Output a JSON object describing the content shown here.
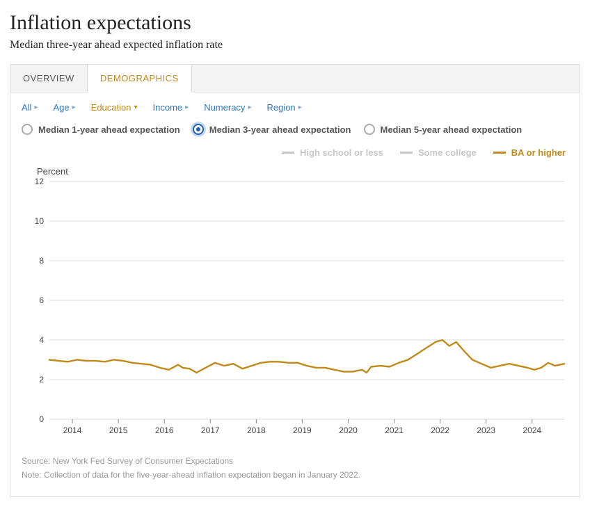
{
  "title": "Inflation expectations",
  "subtitle": "Median three-year ahead expected inflation rate",
  "tabs": [
    {
      "label": "OVERVIEW",
      "active": false
    },
    {
      "label": "DEMOGRAPHICS",
      "active": true
    }
  ],
  "filters": [
    {
      "label": "All",
      "active": false
    },
    {
      "label": "Age",
      "active": false
    },
    {
      "label": "Education",
      "active": true,
      "caret": "down"
    },
    {
      "label": "Income",
      "active": false
    },
    {
      "label": "Numeracy",
      "active": false
    },
    {
      "label": "Region",
      "active": false
    }
  ],
  "radios": [
    {
      "label": "Median 1-year ahead expectation",
      "selected": false
    },
    {
      "label": "Median 3-year ahead expectation",
      "selected": true
    },
    {
      "label": "Median 5-year ahead expectation",
      "selected": false
    }
  ],
  "legend": [
    {
      "label": "High school or less",
      "color": "#c7c7c7",
      "muted": true
    },
    {
      "label": "Some college",
      "color": "#c7c7c7",
      "muted": true
    },
    {
      "label": "BA or higher",
      "color": "#c08a1a",
      "muted": false
    }
  ],
  "chart": {
    "type": "line",
    "y_axis_label": "Percent",
    "ylim": [
      0,
      12
    ],
    "ytick_step": 2,
    "yticks": [
      0,
      2,
      4,
      6,
      8,
      10,
      12
    ],
    "x_labels": [
      "2014",
      "2015",
      "2016",
      "2017",
      "2018",
      "2019",
      "2020",
      "2021",
      "2022",
      "2023",
      "2024"
    ],
    "x_range": [
      2013.5,
      2024.7
    ],
    "background_color": "#ffffff",
    "grid_color": "#d9d9d9",
    "axis_text_color": "#444444",
    "axis_fontsize": 12,
    "line_width": 2.4,
    "series": [
      {
        "name": "BA or higher",
        "color": "#c08a1a",
        "points": [
          [
            2013.5,
            3.0
          ],
          [
            2013.7,
            2.95
          ],
          [
            2013.9,
            2.9
          ],
          [
            2014.1,
            3.0
          ],
          [
            2014.3,
            2.95
          ],
          [
            2014.5,
            2.95
          ],
          [
            2014.7,
            2.9
          ],
          [
            2014.9,
            3.0
          ],
          [
            2015.1,
            2.95
          ],
          [
            2015.3,
            2.85
          ],
          [
            2015.5,
            2.8
          ],
          [
            2015.7,
            2.75
          ],
          [
            2015.9,
            2.6
          ],
          [
            2016.1,
            2.5
          ],
          [
            2016.3,
            2.75
          ],
          [
            2016.4,
            2.6
          ],
          [
            2016.55,
            2.55
          ],
          [
            2016.7,
            2.35
          ],
          [
            2016.9,
            2.6
          ],
          [
            2017.1,
            2.85
          ],
          [
            2017.3,
            2.7
          ],
          [
            2017.5,
            2.8
          ],
          [
            2017.7,
            2.55
          ],
          [
            2017.9,
            2.7
          ],
          [
            2018.1,
            2.85
          ],
          [
            2018.3,
            2.9
          ],
          [
            2018.5,
            2.9
          ],
          [
            2018.7,
            2.85
          ],
          [
            2018.9,
            2.85
          ],
          [
            2019.1,
            2.7
          ],
          [
            2019.3,
            2.6
          ],
          [
            2019.5,
            2.6
          ],
          [
            2019.7,
            2.5
          ],
          [
            2019.9,
            2.4
          ],
          [
            2020.1,
            2.4
          ],
          [
            2020.3,
            2.5
          ],
          [
            2020.4,
            2.35
          ],
          [
            2020.5,
            2.65
          ],
          [
            2020.7,
            2.7
          ],
          [
            2020.9,
            2.65
          ],
          [
            2021.1,
            2.85
          ],
          [
            2021.3,
            3.0
          ],
          [
            2021.5,
            3.3
          ],
          [
            2021.7,
            3.6
          ],
          [
            2021.9,
            3.9
          ],
          [
            2022.05,
            4.0
          ],
          [
            2022.2,
            3.7
          ],
          [
            2022.35,
            3.9
          ],
          [
            2022.5,
            3.5
          ],
          [
            2022.7,
            3.0
          ],
          [
            2022.9,
            2.8
          ],
          [
            2023.1,
            2.6
          ],
          [
            2023.3,
            2.7
          ],
          [
            2023.5,
            2.8
          ],
          [
            2023.7,
            2.7
          ],
          [
            2023.9,
            2.6
          ],
          [
            2024.05,
            2.5
          ],
          [
            2024.2,
            2.6
          ],
          [
            2024.35,
            2.85
          ],
          [
            2024.5,
            2.7
          ],
          [
            2024.7,
            2.8
          ]
        ]
      }
    ]
  },
  "source_text": "Source: New York Fed Survey of Consumer Expectations",
  "note_text": "Note: Collection of data for the five-year-ahead inflation expectation began in January 2022."
}
